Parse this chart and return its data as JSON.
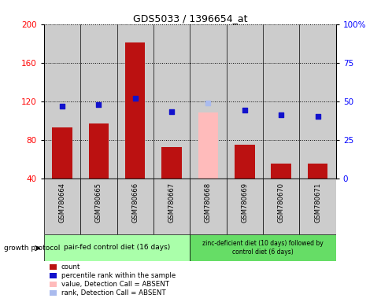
{
  "title": "GDS5033 / 1396654_at",
  "samples": [
    "GSM780664",
    "GSM780665",
    "GSM780666",
    "GSM780667",
    "GSM780668",
    "GSM780669",
    "GSM780670",
    "GSM780671"
  ],
  "counts": [
    93,
    97,
    181,
    72,
    null,
    75,
    55,
    55
  ],
  "counts_absent": [
    null,
    null,
    null,
    null,
    108,
    null,
    null,
    null
  ],
  "percentile_ranks": [
    47,
    48,
    52,
    43,
    null,
    44,
    41,
    40
  ],
  "percentile_ranks_absent": [
    null,
    null,
    null,
    null,
    49,
    null,
    null,
    null
  ],
  "ylim_left": [
    40,
    200
  ],
  "ylim_right": [
    0,
    100
  ],
  "yticks_left": [
    40,
    80,
    120,
    160,
    200
  ],
  "yticks_right": [
    0,
    25,
    50,
    75,
    100
  ],
  "bar_color_present": "#bb1111",
  "bar_color_absent": "#ffbbbb",
  "dot_color_present": "#1111cc",
  "dot_color_absent": "#aabbee",
  "group1_label": "pair-fed control diet (16 days)",
  "group2_label": "zinc-deficient diet (10 days) followed by\ncontrol diet (6 days)",
  "group_label_prefix": "growth protocol",
  "group1_bg": "#aaffaa",
  "group2_bg": "#66dd66",
  "sample_bg": "#cccccc",
  "legend_items": [
    {
      "color": "#bb1111",
      "label": "count"
    },
    {
      "color": "#1111cc",
      "label": "percentile rank within the sample"
    },
    {
      "color": "#ffbbbb",
      "label": "value, Detection Call = ABSENT"
    },
    {
      "color": "#aabbee",
      "label": "rank, Detection Call = ABSENT"
    }
  ],
  "background_color": "#ffffff",
  "bar_width": 0.55
}
